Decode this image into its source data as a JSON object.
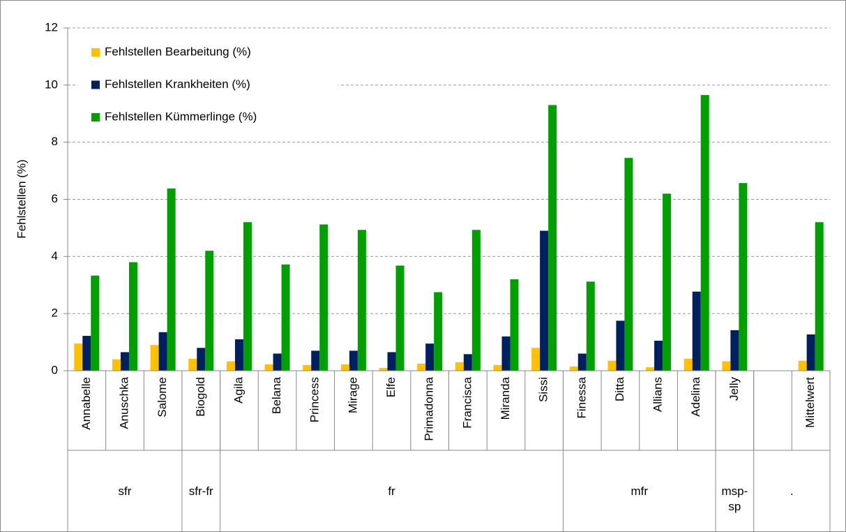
{
  "chart_data": {
    "type": "bar",
    "ylabel": "Fehlstellen (%)",
    "categories": [
      "Annabelle",
      "Anuschka",
      "Salome",
      "Biogold",
      "Agila",
      "Belana",
      "Princess",
      "Mirage",
      "Elfe",
      "Primadonna",
      "Francisca",
      "Miranda",
      "Sissi",
      "Finessa",
      "Ditta",
      "Allians",
      "Adelina",
      "Jelly",
      null,
      "Mittelwert"
    ],
    "groups": [
      {
        "name": "sfr",
        "span": 3
      },
      {
        "name": "sfr-fr",
        "span": 1
      },
      {
        "name": "fr",
        "span": 9
      },
      {
        "name": "mfr",
        "span": 4
      },
      {
        "name": "msp-sp",
        "span": 1
      },
      {
        "name": ".",
        "span": 2
      }
    ],
    "series": [
      {
        "name": "Fehlstellen Bearbeitung (%)",
        "color": "#ffc000",
        "values": [
          0.95,
          0.4,
          0.9,
          0.42,
          0.33,
          0.22,
          0.2,
          0.22,
          0.1,
          0.25,
          0.3,
          0.2,
          0.8,
          0.15,
          0.35,
          0.12,
          0.42,
          0.33,
          null,
          0.35
        ]
      },
      {
        "name": "Fehlstellen Krankheiten (%)",
        "color": "#002060",
        "values": [
          1.22,
          0.65,
          1.35,
          0.8,
          1.1,
          0.6,
          0.7,
          0.7,
          0.65,
          0.95,
          0.58,
          1.2,
          4.9,
          0.6,
          1.75,
          1.05,
          2.77,
          1.42,
          null,
          1.27
        ]
      },
      {
        "name": "Fehlstellen Kümmerlinge (%)",
        "color": "#00a000",
        "values": [
          3.33,
          3.8,
          6.38,
          4.2,
          5.2,
          3.72,
          5.12,
          4.93,
          3.68,
          2.75,
          4.93,
          3.2,
          9.3,
          3.12,
          7.45,
          6.2,
          9.65,
          6.57,
          null,
          5.2
        ]
      }
    ],
    "ylim": [
      0,
      12
    ],
    "yticks": [
      0,
      2,
      4,
      6,
      8,
      10,
      12
    ],
    "grid": true,
    "legend": "upper left"
  }
}
